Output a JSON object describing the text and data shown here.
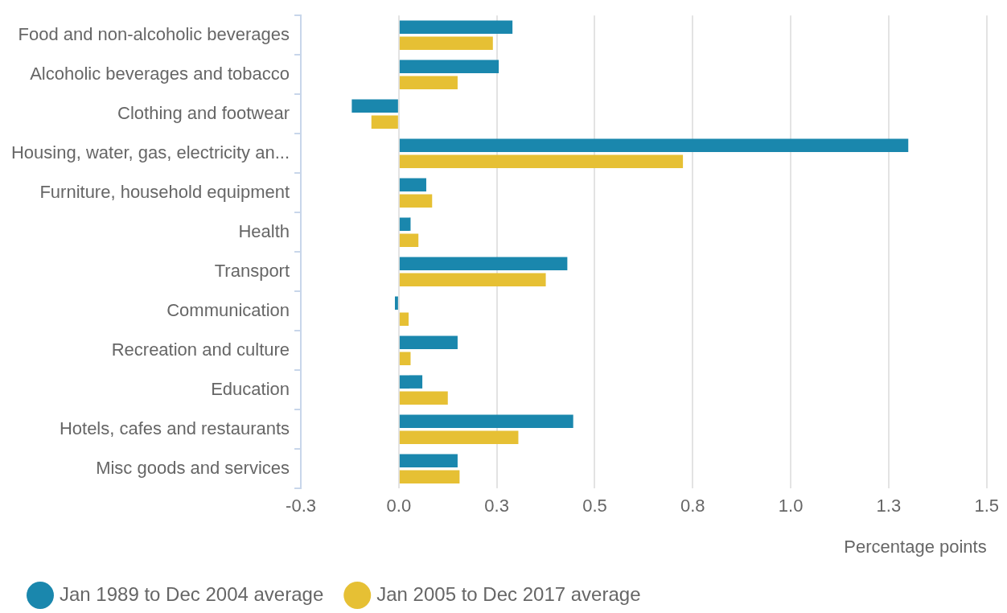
{
  "chart_data": {
    "type": "bar",
    "orientation": "horizontal",
    "xlabel": "Percentage points",
    "categories": [
      "Food and non-alcoholic beverages",
      "Alcoholic beverages and tobacco",
      "Clothing and footwear",
      "Housing, water, gas, electricity an...",
      "Furniture, household equipment",
      "Health",
      "Transport",
      "Communication",
      "Recreation and culture",
      "Education",
      "Hotels, cafes and restaurants",
      "Misc goods and services"
    ],
    "series": [
      {
        "name": "Jan 1989 to Dec 2004 average",
        "color": "#1a87ad",
        "values": [
          0.29,
          0.255,
          -0.12,
          1.3,
          0.07,
          0.03,
          0.43,
          -0.01,
          0.15,
          0.06,
          0.445,
          0.15
        ]
      },
      {
        "name": "Jan 2005 to Dec 2017 average",
        "color": "#e6c034",
        "values": [
          0.24,
          0.15,
          -0.07,
          0.725,
          0.085,
          0.05,
          0.375,
          0.025,
          0.03,
          0.125,
          0.305,
          0.155
        ]
      }
    ],
    "xlim": [
      -0.25,
      1.5
    ],
    "xticks": [
      {
        "value": -0.25,
        "label": "-0.3"
      },
      {
        "value": 0,
        "label": "0.0"
      },
      {
        "value": 0.25,
        "label": "0.3"
      },
      {
        "value": 0.5,
        "label": "0.5"
      },
      {
        "value": 0.75,
        "label": "0.8"
      },
      {
        "value": 1,
        "label": "1.0"
      },
      {
        "value": 1.25,
        "label": "1.3"
      },
      {
        "value": 1.5,
        "label": "1.5"
      }
    ],
    "grid": "x",
    "legend": "bottom left"
  }
}
